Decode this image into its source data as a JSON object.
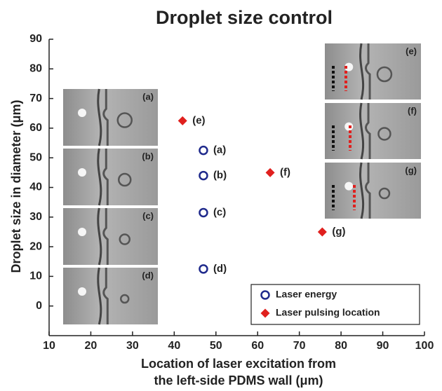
{
  "chart_data": {
    "type": "scatter",
    "title": "Droplet size control",
    "xlabel": [
      "Location of laser excitation from",
      "the left-side PDMS wall (μm)"
    ],
    "ylabel": "Droplet size in diameter (μm)",
    "xlim": [
      10,
      100
    ],
    "xticks": [
      10,
      20,
      30,
      40,
      50,
      60,
      70,
      80,
      90,
      100
    ],
    "ylim": [
      -10,
      90
    ],
    "yticks": [
      0,
      10,
      20,
      30,
      40,
      50,
      60,
      70,
      80,
      90
    ],
    "legend": "lower right",
    "series": [
      {
        "name": "Laser energy",
        "color": "#1f2a8c",
        "marker": "circle",
        "x": [
          47,
          47,
          47,
          47
        ],
        "values": [
          52.5,
          44,
          31.5,
          12.5
        ],
        "labels": [
          "(a)",
          "(b)",
          "(c)",
          "(d)"
        ]
      },
      {
        "name": "Laser pulsing location",
        "color": "#e0201e",
        "marker": "diamond",
        "x": [
          42,
          63,
          75.5
        ],
        "values": [
          62.5,
          45,
          25
        ],
        "labels": [
          "(e)",
          "(f)",
          "(g)"
        ]
      }
    ],
    "insets": {
      "left": [
        "(a)",
        "(b)",
        "(c)",
        "(d)"
      ],
      "right": [
        "(e)",
        "(f)",
        "(g)"
      ]
    }
  }
}
